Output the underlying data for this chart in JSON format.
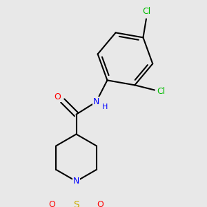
{
  "background_color": "#e8e8e8",
  "bond_color": "#000000",
  "bond_width": 1.5,
  "atom_colors": {
    "C": "#000000",
    "N": "#0000ff",
    "O": "#ff0000",
    "S": "#ccaa00",
    "Cl": "#00bb00",
    "H": "#0000ff"
  },
  "font_size": 9,
  "fig_size": [
    3.0,
    3.0
  ],
  "dpi": 100
}
